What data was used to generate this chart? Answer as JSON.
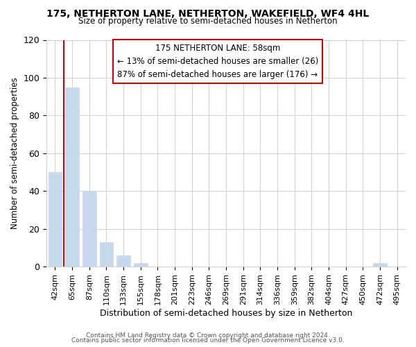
{
  "title": "175, NETHERTON LANE, NETHERTON, WAKEFIELD, WF4 4HL",
  "subtitle": "Size of property relative to semi-detached houses in Netherton",
  "xlabel": "Distribution of semi-detached houses by size in Netherton",
  "ylabel": "Number of semi-detached properties",
  "bar_labels": [
    "42sqm",
    "65sqm",
    "87sqm",
    "110sqm",
    "133sqm",
    "155sqm",
    "178sqm",
    "201sqm",
    "223sqm",
    "246sqm",
    "269sqm",
    "291sqm",
    "314sqm",
    "336sqm",
    "359sqm",
    "382sqm",
    "404sqm",
    "427sqm",
    "450sqm",
    "472sqm",
    "495sqm"
  ],
  "bar_values": [
    50,
    95,
    40,
    13,
    6,
    2,
    0,
    0,
    0,
    0,
    0,
    0,
    0,
    0,
    0,
    0,
    0,
    0,
    0,
    2,
    0
  ],
  "bar_color": "#c6d9ec",
  "bar_edge_color": "#c6d9ec",
  "highlight_color": "#cc0000",
  "annotation_title": "175 NETHERTON LANE: 58sqm",
  "annotation_line1": "← 13% of semi-detached houses are smaller (26)",
  "annotation_line2": "87% of semi-detached houses are larger (176) →",
  "annotation_box_color": "#ffffff",
  "annotation_box_edge": "#cc0000",
  "ylim": [
    0,
    120
  ],
  "yticks": [
    0,
    20,
    40,
    60,
    80,
    100,
    120
  ],
  "footer1": "Contains HM Land Registry data © Crown copyright and database right 2024.",
  "footer2": "Contains public sector information licensed under the Open Government Licence v3.0.",
  "background_color": "#ffffff",
  "grid_color": "#d0d0d0"
}
